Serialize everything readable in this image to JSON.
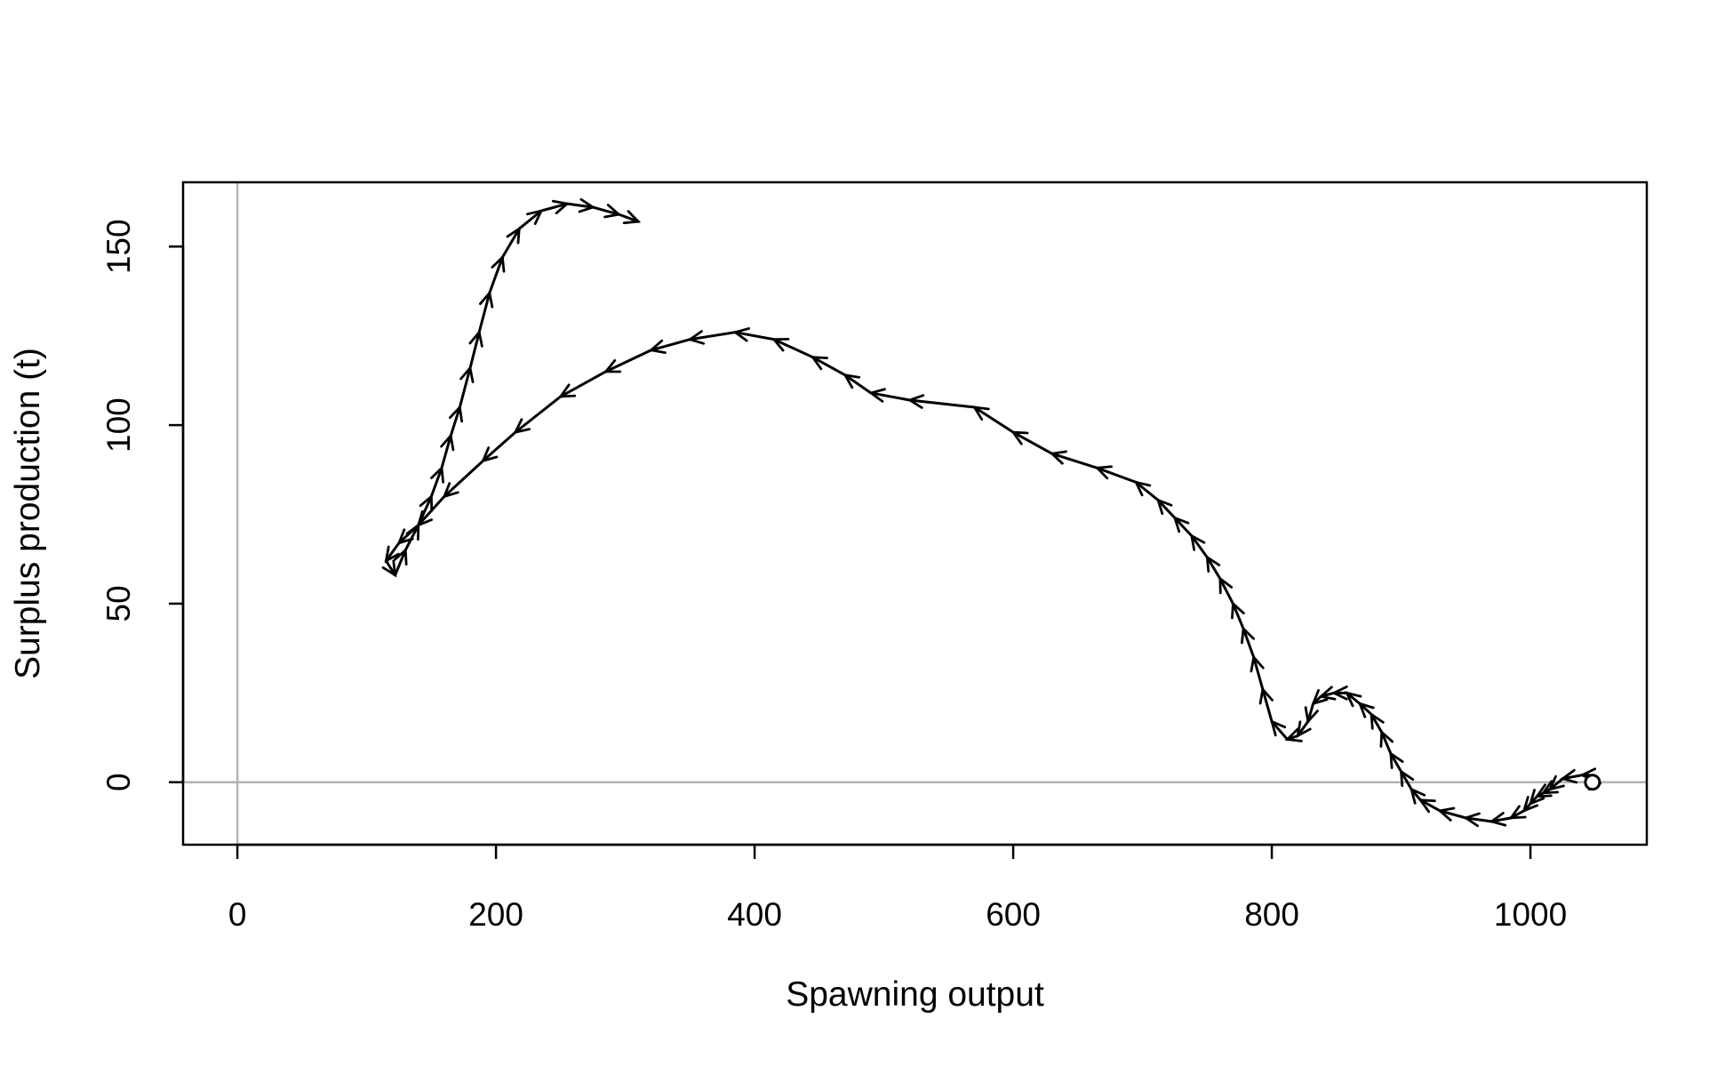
{
  "chart_data": {
    "type": "line",
    "title": "",
    "xlabel": "Spawning output",
    "ylabel": "Surplus production (t)",
    "xlim": [
      -42,
      1090
    ],
    "ylim": [
      -17.5,
      168
    ],
    "xticks": [
      0,
      200,
      400,
      600,
      800,
      1000
    ],
    "yticks": [
      0,
      50,
      100,
      150
    ],
    "xtick_labels": [
      "0",
      "200",
      "400",
      "600",
      "800",
      "1000"
    ],
    "ytick_labels": [
      "0",
      "50",
      "100",
      "150"
    ],
    "reference_lines": {
      "x": 0,
      "y": 0,
      "color": "#b3b3b3"
    },
    "line_color": "#000000",
    "arrows": true,
    "start_marker": "open circle at the first point",
    "grid": false,
    "legend": "none",
    "series": [
      {
        "x": [
          1048,
          1045,
          1040,
          1025,
          1015,
          1010,
          1005,
          1000,
          995,
          985,
          970,
          950,
          930,
          915,
          908,
          900,
          892,
          885,
          877,
          868,
          858,
          848,
          838,
          832,
          828,
          820,
          812,
          800,
          793,
          786,
          778,
          770,
          760,
          750,
          738,
          725,
          712,
          695,
          665,
          630,
          600,
          570,
          520,
          490,
          470,
          445,
          415,
          385,
          350,
          320,
          285,
          250,
          215,
          190,
          160,
          140,
          125,
          115,
          122,
          130,
          140,
          150,
          158,
          165,
          172,
          180,
          187,
          195,
          205,
          218,
          235,
          255,
          275,
          295,
          310
        ],
        "y": [
          0,
          2,
          2,
          1,
          -2,
          -3,
          -4,
          -6,
          -8,
          -10,
          -11,
          -10,
          -8,
          -5,
          -2,
          3,
          8,
          14,
          19,
          22,
          25,
          25,
          24,
          22,
          17,
          13,
          12,
          17,
          26,
          35,
          43,
          50,
          57,
          63,
          69,
          74,
          79,
          84,
          88,
          92,
          98,
          105,
          107,
          109,
          114,
          119,
          124,
          126,
          124,
          121,
          115,
          108,
          98,
          90,
          80,
          72,
          67,
          62,
          58,
          65,
          72,
          80,
          88,
          97,
          105,
          116,
          126,
          137,
          147,
          155,
          160,
          162,
          161,
          159,
          157
        ]
      }
    ]
  }
}
